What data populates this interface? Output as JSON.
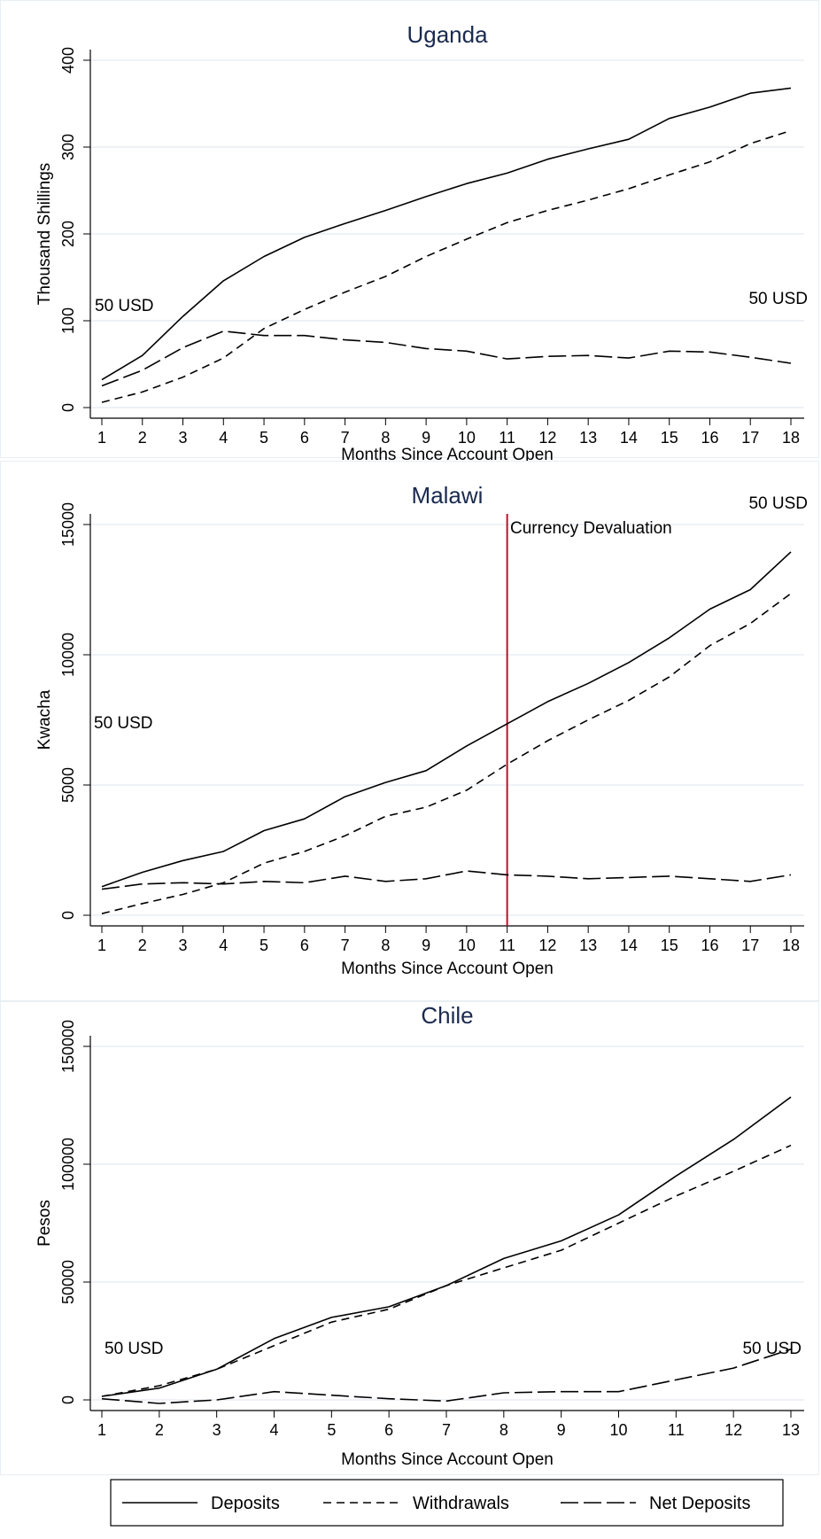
{
  "chart_data": [
    {
      "type": "line",
      "title": "Uganda",
      "xlabel": "Months Since Account Open",
      "ylabel": "Thousand Shillings",
      "x": [
        1,
        2,
        3,
        4,
        5,
        6,
        7,
        8,
        9,
        10,
        11,
        12,
        13,
        14,
        15,
        16,
        17,
        18
      ],
      "xticks": [
        "1",
        "2",
        "3",
        "4",
        "5",
        "6",
        "7",
        "8",
        "9",
        "10",
        "11",
        "12",
        "13",
        "14",
        "15",
        "16",
        "17",
        "18"
      ],
      "yticks": [
        "0",
        "100",
        "200",
        "300",
        "400"
      ],
      "ylim": [
        0,
        400
      ],
      "grid": true,
      "series": [
        {
          "name": "Deposits",
          "dash": "solid",
          "values": [
            32,
            60,
            105,
            146,
            174,
            196,
            212,
            227,
            243,
            258,
            270,
            286,
            298,
            309,
            333,
            346,
            362,
            368
          ]
        },
        {
          "name": "Withdrawals",
          "dash": "short-dash",
          "values": [
            6,
            18,
            35,
            57,
            91,
            113,
            133,
            151,
            174,
            194,
            213,
            227,
            239,
            252,
            268,
            283,
            304,
            319
          ]
        },
        {
          "name": "Net Deposits",
          "dash": "long-dash",
          "values": [
            25,
            43,
            69,
            88,
            83,
            83,
            78,
            75,
            68,
            65,
            56,
            59,
            60,
            57,
            65,
            64,
            58,
            51
          ]
        }
      ],
      "annotations": [
        "50 USD",
        "50 USD"
      ]
    },
    {
      "type": "line",
      "title": "Malawi",
      "xlabel": "Months Since Account Open",
      "ylabel": "Kwacha",
      "x": [
        1,
        2,
        3,
        4,
        5,
        6,
        7,
        8,
        9,
        10,
        11,
        12,
        13,
        14,
        15,
        16,
        17,
        18
      ],
      "xticks": [
        "1",
        "2",
        "3",
        "4",
        "5",
        "6",
        "7",
        "8",
        "9",
        "10",
        "11",
        "12",
        "13",
        "14",
        "15",
        "16",
        "17",
        "18"
      ],
      "yticks": [
        "0",
        "5000",
        "10000",
        "15000"
      ],
      "ylim": [
        0,
        15000
      ],
      "grid": true,
      "series": [
        {
          "name": "Deposits",
          "dash": "solid",
          "values": [
            1100,
            1650,
            2100,
            2450,
            3250,
            3700,
            4550,
            5100,
            5550,
            6500,
            7350,
            8200,
            8900,
            9700,
            10650,
            11750,
            12500,
            13950
          ]
        },
        {
          "name": "Withdrawals",
          "dash": "short-dash",
          "values": [
            60,
            450,
            800,
            1250,
            2000,
            2450,
            3050,
            3800,
            4150,
            4800,
            5800,
            6700,
            7500,
            8250,
            9150,
            10350,
            11200,
            12350
          ]
        },
        {
          "name": "Net Deposits",
          "dash": "long-dash",
          "values": [
            1000,
            1200,
            1250,
            1200,
            1300,
            1250,
            1500,
            1300,
            1400,
            1700,
            1550,
            1500,
            1400,
            1450,
            1500,
            1400,
            1300,
            1550
          ]
        }
      ],
      "vline": {
        "x": 11,
        "label": "Currency Devaluation",
        "color": "#c0102a"
      },
      "annotations": [
        "50 USD",
        "50 USD"
      ]
    },
    {
      "type": "line",
      "title": "Chile",
      "xlabel": "Months Since Account Open",
      "ylabel": "Pesos",
      "x": [
        1,
        2,
        3,
        4,
        5,
        6,
        7,
        8,
        9,
        10,
        11,
        12,
        13
      ],
      "xticks": [
        "1",
        "2",
        "3",
        "4",
        "5",
        "6",
        "7",
        "8",
        "9",
        "10",
        "11",
        "12",
        "13"
      ],
      "yticks": [
        "0",
        "50000",
        "100000",
        "150000"
      ],
      "ylim": [
        0,
        150000
      ],
      "grid": true,
      "series": [
        {
          "name": "Deposits",
          "dash": "solid",
          "values": [
            1500,
            5000,
            13000,
            26000,
            35000,
            39500,
            48500,
            60000,
            67500,
            78500,
            95000,
            110500,
            128500
          ]
        },
        {
          "name": "Withdrawals",
          "dash": "short-dash",
          "values": [
            1500,
            6000,
            13000,
            23000,
            33000,
            38500,
            48500,
            56000,
            63500,
            75000,
            86500,
            97000,
            108000
          ]
        },
        {
          "name": "Net Deposits",
          "dash": "long-dash",
          "values": [
            500,
            -1500,
            0,
            3500,
            2000,
            500,
            -500,
            3000,
            3500,
            3500,
            8500,
            13500,
            21500
          ]
        }
      ],
      "annotations": [
        "50 USD",
        "50 USD"
      ]
    }
  ],
  "legend": {
    "position": "bottom",
    "items": [
      {
        "label": "Deposits",
        "dash": "solid"
      },
      {
        "label": "Withdrawals",
        "dash": "short-dash"
      },
      {
        "label": "Net Deposits",
        "dash": "long-dash"
      }
    ]
  },
  "colors": {
    "line": "#000000",
    "grid": "#dde6ee",
    "title": "#1a2a4f",
    "vline": "#c0102a"
  }
}
